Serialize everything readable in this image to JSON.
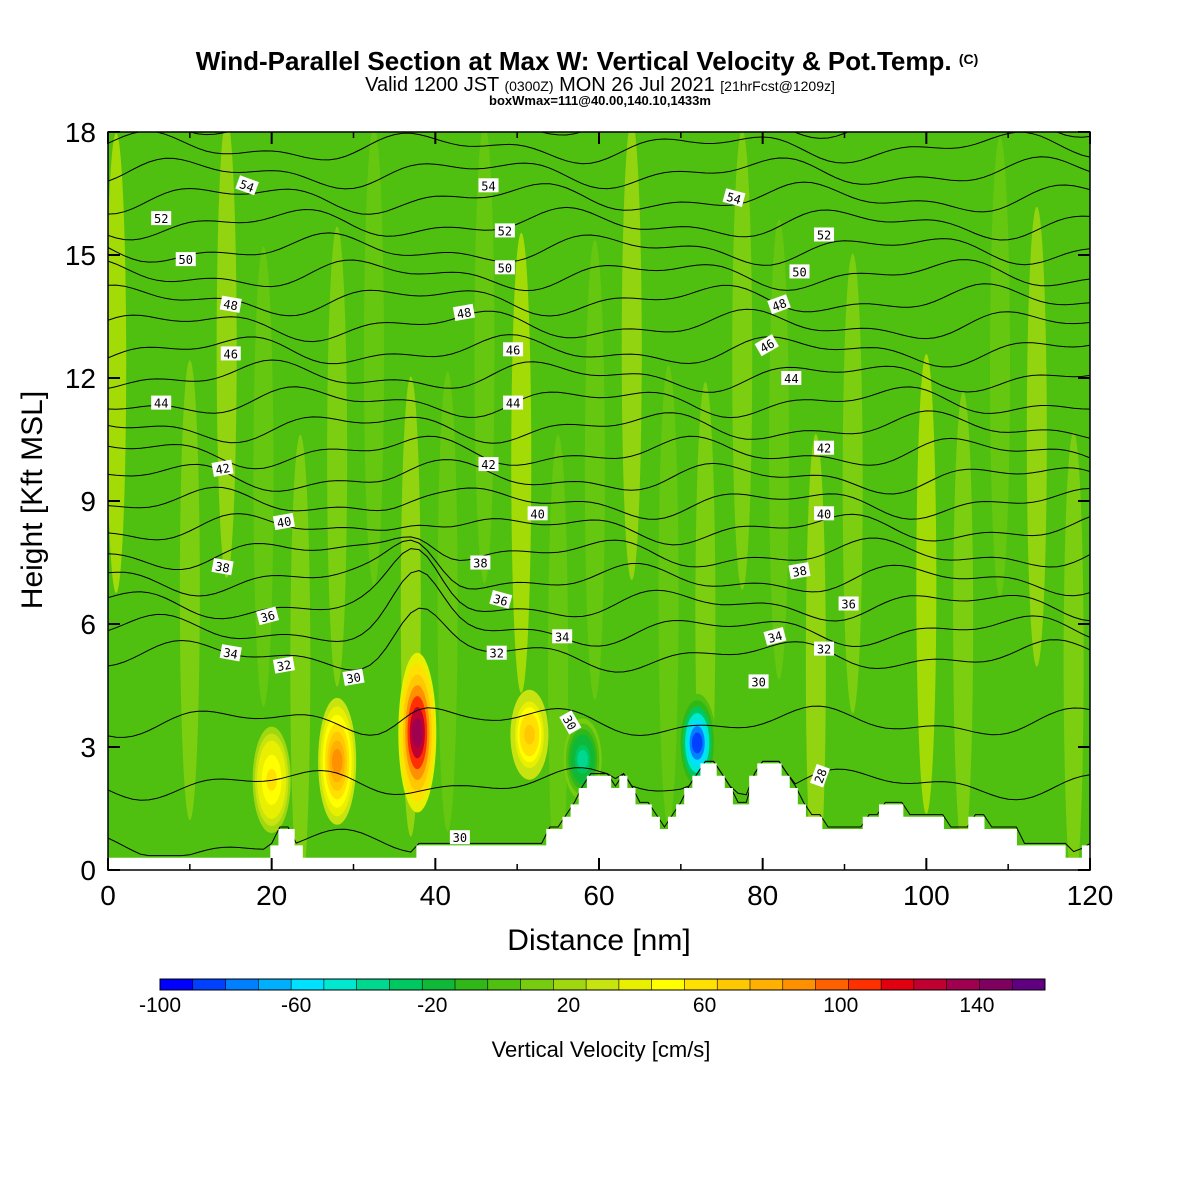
{
  "title": {
    "main": "Wind-Parallel Section at Max W: Vertical Velocity & Pot.Temp.",
    "copyright": "(C)",
    "valid_prefix": "Valid 1200 JST",
    "valid_utc": "(0300Z)",
    "valid_date": "MON 26 Jul 2021",
    "forecast": "[21hrFcst@1209z]",
    "boxw": "boxWmax=111@40.00,140.10,1433m"
  },
  "colorbar": {
    "label": "Vertical Velocity [cm/s]",
    "min": -100,
    "max": 160,
    "tick_labels": [
      "-100",
      "-60",
      "-20",
      "20",
      "60",
      "100",
      "140"
    ],
    "tick_values": [
      -100,
      -60,
      -20,
      20,
      60,
      100,
      140
    ],
    "colors": [
      "#0000ff",
      "#0040ff",
      "#0080ff",
      "#00b0ff",
      "#00e0ff",
      "#00e8d0",
      "#00d890",
      "#00c860",
      "#10b838",
      "#30b818",
      "#50c010",
      "#78cc10",
      "#a0d810",
      "#c8e410",
      "#e8f000",
      "#ffff00",
      "#ffe000",
      "#ffc800",
      "#ffb000",
      "#ff9000",
      "#ff6000",
      "#ff3000",
      "#e00010",
      "#c00030",
      "#a00050",
      "#800060",
      "#600080"
    ]
  },
  "chart_data": {
    "type": "heatmap",
    "xlabel": "Distance [nm]",
    "ylabel": "Height [Kft MSL]",
    "xlim": [
      0,
      120
    ],
    "ylim": [
      0,
      18
    ],
    "xticks": [
      0,
      20,
      40,
      60,
      80,
      100,
      120
    ],
    "yticks": [
      0,
      3,
      6,
      9,
      12,
      15,
      18
    ],
    "xtick_labels": [
      "0",
      "20",
      "40",
      "60",
      "80",
      "100",
      "120"
    ],
    "ytick_labels": [
      "0",
      "3",
      "6",
      "9",
      "12",
      "15",
      "18"
    ],
    "velocity_features": [
      {
        "x": 37.8,
        "z_bottom": 1.5,
        "z_top": 5.2,
        "max": 140,
        "kind": "updraft"
      },
      {
        "x": 28.0,
        "z_bottom": 1.2,
        "z_top": 4.1,
        "max": 90,
        "kind": "updraft"
      },
      {
        "x": 51.5,
        "z_bottom": 2.3,
        "z_top": 4.3,
        "max": 70,
        "kind": "updraft"
      },
      {
        "x": 20.0,
        "z_bottom": 1.0,
        "z_top": 3.4,
        "max": 55,
        "kind": "updraft"
      },
      {
        "x": 72.0,
        "z_bottom": 2.0,
        "z_top": 4.2,
        "max": -90,
        "kind": "downdraft"
      },
      {
        "x": 58.0,
        "z_bottom": 1.8,
        "z_top": 3.6,
        "max": -40,
        "kind": "downdraft"
      }
    ],
    "theta_labels": [
      {
        "text": "54",
        "x": 17,
        "z": 16.7,
        "rot": 20
      },
      {
        "text": "54",
        "x": 46.5,
        "z": 16.7,
        "rot": 0
      },
      {
        "text": "54",
        "x": 76.5,
        "z": 16.4,
        "rot": 15
      },
      {
        "text": "52",
        "x": 6.5,
        "z": 15.9,
        "rot": 0
      },
      {
        "text": "52",
        "x": 48.5,
        "z": 15.6,
        "rot": 0
      },
      {
        "text": "52",
        "x": 87.5,
        "z": 15.5,
        "rot": 0
      },
      {
        "text": "50",
        "x": 9.5,
        "z": 14.9,
        "rot": 0
      },
      {
        "text": "50",
        "x": 48.5,
        "z": 14.7,
        "rot": 0
      },
      {
        "text": "50",
        "x": 84.5,
        "z": 14.6,
        "rot": 0
      },
      {
        "text": "48",
        "x": 15,
        "z": 13.8,
        "rot": 10
      },
      {
        "text": "48",
        "x": 43.5,
        "z": 13.6,
        "rot": -10
      },
      {
        "text": "48",
        "x": 82,
        "z": 13.8,
        "rot": -20
      },
      {
        "text": "46",
        "x": 15,
        "z": 12.6,
        "rot": 0
      },
      {
        "text": "46",
        "x": 49.5,
        "z": 12.7,
        "rot": 0
      },
      {
        "text": "46",
        "x": 80.5,
        "z": 12.8,
        "rot": -30
      },
      {
        "text": "44",
        "x": 6.5,
        "z": 11.4,
        "rot": 0
      },
      {
        "text": "44",
        "x": 49.5,
        "z": 11.4,
        "rot": 0
      },
      {
        "text": "44",
        "x": 83.5,
        "z": 12.0,
        "rot": 0
      },
      {
        "text": "42",
        "x": 14,
        "z": 9.8,
        "rot": -10
      },
      {
        "text": "42",
        "x": 46.5,
        "z": 9.9,
        "rot": 0
      },
      {
        "text": "42",
        "x": 87.5,
        "z": 10.3,
        "rot": 0
      },
      {
        "text": "40",
        "x": 21.5,
        "z": 8.5,
        "rot": -10
      },
      {
        "text": "40",
        "x": 52.5,
        "z": 8.7,
        "rot": 0
      },
      {
        "text": "40",
        "x": 87.5,
        "z": 8.7,
        "rot": 0
      },
      {
        "text": "38",
        "x": 14,
        "z": 7.4,
        "rot": 10
      },
      {
        "text": "38",
        "x": 45.5,
        "z": 7.5,
        "rot": 0
      },
      {
        "text": "38",
        "x": 84.5,
        "z": 7.3,
        "rot": -10
      },
      {
        "text": "36",
        "x": 19.5,
        "z": 6.2,
        "rot": -15
      },
      {
        "text": "36",
        "x": 48,
        "z": 6.6,
        "rot": 15
      },
      {
        "text": "36",
        "x": 90.5,
        "z": 6.5,
        "rot": 0
      },
      {
        "text": "34",
        "x": 15,
        "z": 5.3,
        "rot": 10
      },
      {
        "text": "34",
        "x": 55.5,
        "z": 5.7,
        "rot": 0
      },
      {
        "text": "34",
        "x": 81.5,
        "z": 5.7,
        "rot": -15
      },
      {
        "text": "32",
        "x": 21.5,
        "z": 5.0,
        "rot": -10
      },
      {
        "text": "32",
        "x": 47.5,
        "z": 5.3,
        "rot": 0
      },
      {
        "text": "32",
        "x": 87.5,
        "z": 5.4,
        "rot": 0
      },
      {
        "text": "30",
        "x": 30,
        "z": 4.7,
        "rot": -10
      },
      {
        "text": "30",
        "x": 56.5,
        "z": 3.6,
        "rot": 60
      },
      {
        "text": "30",
        "x": 79.5,
        "z": 4.6,
        "rot": 0
      },
      {
        "text": "30",
        "x": 43,
        "z": 0.8,
        "rot": 0
      },
      {
        "text": "28",
        "x": 87,
        "z": 2.3,
        "rot": -70
      }
    ],
    "terrain_kft": [
      0.3,
      0.3,
      0.3,
      0.3,
      0.3,
      0.3,
      0.3,
      0.3,
      0.3,
      0.3,
      0.3,
      0.3,
      0.3,
      0.3,
      0.3,
      0.3,
      0.3,
      0.3,
      0.3,
      0.3,
      0.6,
      1.0,
      1.0,
      0.6,
      0.3,
      0.3,
      0.3,
      0.3,
      0.3,
      0.3,
      0.3,
      0.3,
      0.3,
      0.3,
      0.3,
      0.3,
      0.3,
      0.3,
      0.6,
      0.6,
      0.6,
      0.6,
      0.6,
      0.6,
      0.6,
      0.6,
      0.6,
      0.6,
      0.6,
      0.6,
      0.6,
      0.6,
      0.6,
      0.6,
      1.0,
      1.0,
      1.3,
      1.6,
      2.0,
      2.3,
      2.3,
      2.3,
      2.0,
      2.3,
      2.0,
      1.6,
      1.6,
      1.3,
      1.0,
      1.3,
      1.6,
      2.0,
      2.3,
      2.6,
      2.6,
      2.3,
      2.0,
      1.6,
      1.6,
      2.3,
      2.6,
      2.6,
      2.6,
      2.3,
      2.0,
      1.6,
      1.3,
      1.3,
      1.0,
      1.0,
      1.0,
      1.0,
      1.0,
      1.3,
      1.3,
      1.6,
      1.6,
      1.6,
      1.3,
      1.3,
      1.3,
      1.3,
      1.3,
      1.0,
      1.0,
      1.0,
      1.3,
      1.3,
      1.0,
      1.0,
      1.0,
      1.0,
      0.6,
      0.6,
      0.6,
      0.6,
      0.6,
      0.6,
      0.3,
      0.3,
      0.6
    ]
  }
}
